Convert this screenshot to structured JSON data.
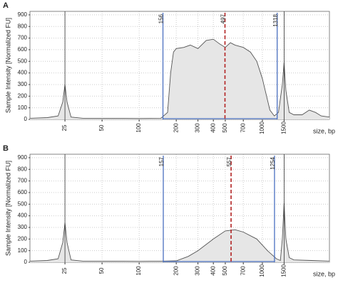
{
  "chart_data": [
    {
      "type": "area",
      "label": "A",
      "ylabel": "Sample Intensity [Normalized FU]",
      "xlabel": "size, bp",
      "xscale": "log",
      "xlim": [
        13,
        3500
      ],
      "ylim": [
        0,
        930
      ],
      "grid": true,
      "xticks": [
        25,
        50,
        100,
        200,
        300,
        400,
        500,
        700,
        1000,
        1500
      ],
      "yticks": [
        0,
        100,
        200,
        300,
        400,
        500,
        600,
        700,
        800,
        900
      ],
      "color": "#555555",
      "fill": "#e6e6e6",
      "markers": [
        25,
        1500
      ],
      "region": {
        "start": 156,
        "end": 1318,
        "color": "#4a6fc0"
      },
      "peak": {
        "value": 497,
        "color": "#b22222"
      },
      "x": [
        13,
        18,
        22,
        24,
        25,
        26,
        28,
        35,
        60,
        100,
        150,
        170,
        180,
        190,
        200,
        230,
        260,
        300,
        350,
        400,
        450,
        500,
        550,
        600,
        700,
        800,
        900,
        1000,
        1150,
        1250,
        1350,
        1450,
        1500,
        1550,
        1650,
        1800,
        2100,
        2400,
        2700,
        3000,
        3500
      ],
      "values": [
        10,
        15,
        30,
        150,
        300,
        150,
        20,
        10,
        10,
        8,
        10,
        60,
        400,
        580,
        610,
        620,
        640,
        610,
        680,
        690,
        650,
        620,
        660,
        640,
        620,
        580,
        500,
        350,
        80,
        30,
        60,
        300,
        490,
        250,
        60,
        40,
        40,
        80,
        60,
        30,
        20
      ]
    },
    {
      "type": "area",
      "label": "B",
      "ylabel": "Sample Intensity [Normalized FU]",
      "xlabel": "size, bp",
      "xscale": "log",
      "xlim": [
        13,
        3500
      ],
      "ylim": [
        0,
        930
      ],
      "grid": true,
      "xticks": [
        25,
        50,
        100,
        200,
        300,
        400,
        500,
        700,
        1000,
        1500
      ],
      "yticks": [
        0,
        100,
        200,
        300,
        400,
        500,
        600,
        700,
        800,
        900
      ],
      "color": "#555555",
      "fill": "#e6e6e6",
      "markers": [
        25,
        1500
      ],
      "region": {
        "start": 157,
        "end": 1254,
        "color": "#4a6fc0"
      },
      "peak": {
        "value": 557,
        "color": "#b22222"
      },
      "x": [
        13,
        18,
        22,
        24,
        25,
        26,
        28,
        35,
        60,
        100,
        150,
        200,
        250,
        300,
        400,
        500,
        600,
        700,
        900,
        1100,
        1300,
        1400,
        1450,
        1500,
        1550,
        1650,
        1800,
        2500,
        3500
      ],
      "values": [
        10,
        15,
        30,
        170,
        340,
        170,
        20,
        10,
        10,
        8,
        10,
        12,
        50,
        100,
        200,
        270,
        280,
        260,
        200,
        100,
        30,
        15,
        200,
        510,
        200,
        40,
        20,
        15,
        10
      ]
    }
  ]
}
